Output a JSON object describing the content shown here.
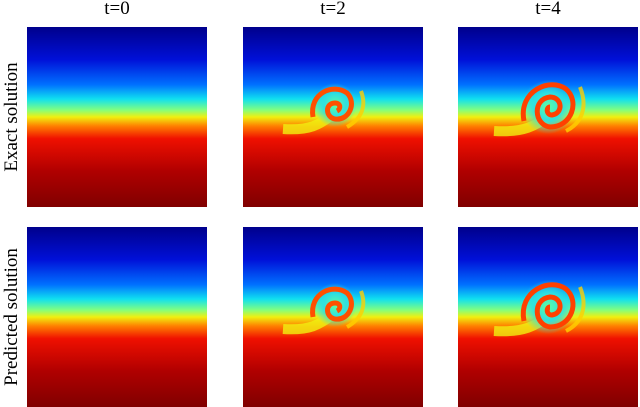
{
  "column_titles": [
    "t=0",
    "t=2",
    "t=4"
  ],
  "row_labels": [
    "Exact solution",
    "Predicted solution"
  ]
}
